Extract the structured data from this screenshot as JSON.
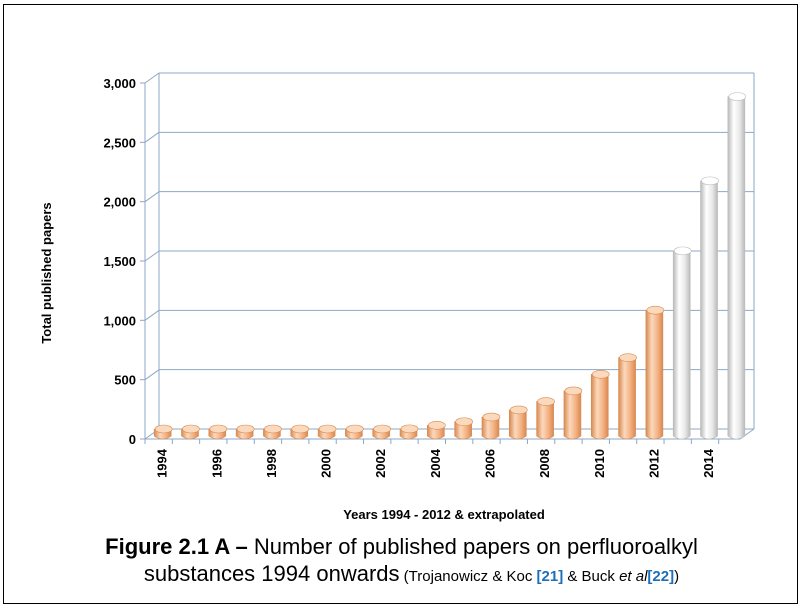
{
  "chart_data": {
    "type": "bar",
    "style": "3d-cylinder",
    "ylabel": "Total published papers",
    "xlabel": "Years 1994 - 2012 & extrapolated",
    "ylim": [
      0,
      3000
    ],
    "yticks": [
      0,
      500,
      1000,
      1500,
      2000,
      2500,
      3000
    ],
    "ytick_labels": [
      "0",
      "500",
      "1,000",
      "1,500",
      "2,000",
      "2,500",
      "3,000"
    ],
    "grid": true,
    "categories": [
      "1994",
      "1995",
      "1996",
      "1997",
      "1998",
      "1999",
      "2000",
      "2001",
      "2002",
      "2003",
      "2004",
      "2005",
      "2006",
      "2007",
      "2008",
      "2009",
      "2010",
      "2011",
      "2012",
      "2013",
      "2014",
      "2015"
    ],
    "xtick_labels": [
      "1994",
      "",
      "1996",
      "",
      "1998",
      "",
      "2000",
      "",
      "2002",
      "",
      "2004",
      "",
      "2006",
      "",
      "2008",
      "",
      "2010",
      "",
      "2012",
      "",
      "2014",
      ""
    ],
    "values": [
      10,
      12,
      14,
      16,
      18,
      22,
      28,
      35,
      45,
      60,
      90,
      120,
      160,
      220,
      290,
      380,
      520,
      660,
      1060,
      1560,
      2150,
      2860
    ],
    "series_kind": [
      "measured",
      "measured",
      "measured",
      "measured",
      "measured",
      "measured",
      "measured",
      "measured",
      "measured",
      "measured",
      "measured",
      "measured",
      "measured",
      "measured",
      "measured",
      "measured",
      "measured",
      "measured",
      "measured",
      "extrapolated",
      "extrapolated",
      "extrapolated"
    ],
    "colors": {
      "measured": "#f4b183",
      "measured_dark": "#d9894f",
      "measured_light": "#fbd9bd",
      "extrapolated": "#e8e8e8",
      "extrapolated_dark": "#b9b9b9",
      "extrapolated_light": "#ffffff",
      "grid": "#8ea7c4",
      "axis": "#8ea7c4"
    }
  },
  "caption": {
    "figure_label": "Figure 2.1 A –",
    "text_line1": " Number of published papers on perfluoroalkyl",
    "text_line2": "substances 1994 onwards",
    "cite_open": " (Trojanowicz & Koc ",
    "ref1": "[21]",
    "cite_mid": " & Buck ",
    "cite_etal": "et al",
    "ref2": "[22]",
    "cite_close": ")"
  }
}
